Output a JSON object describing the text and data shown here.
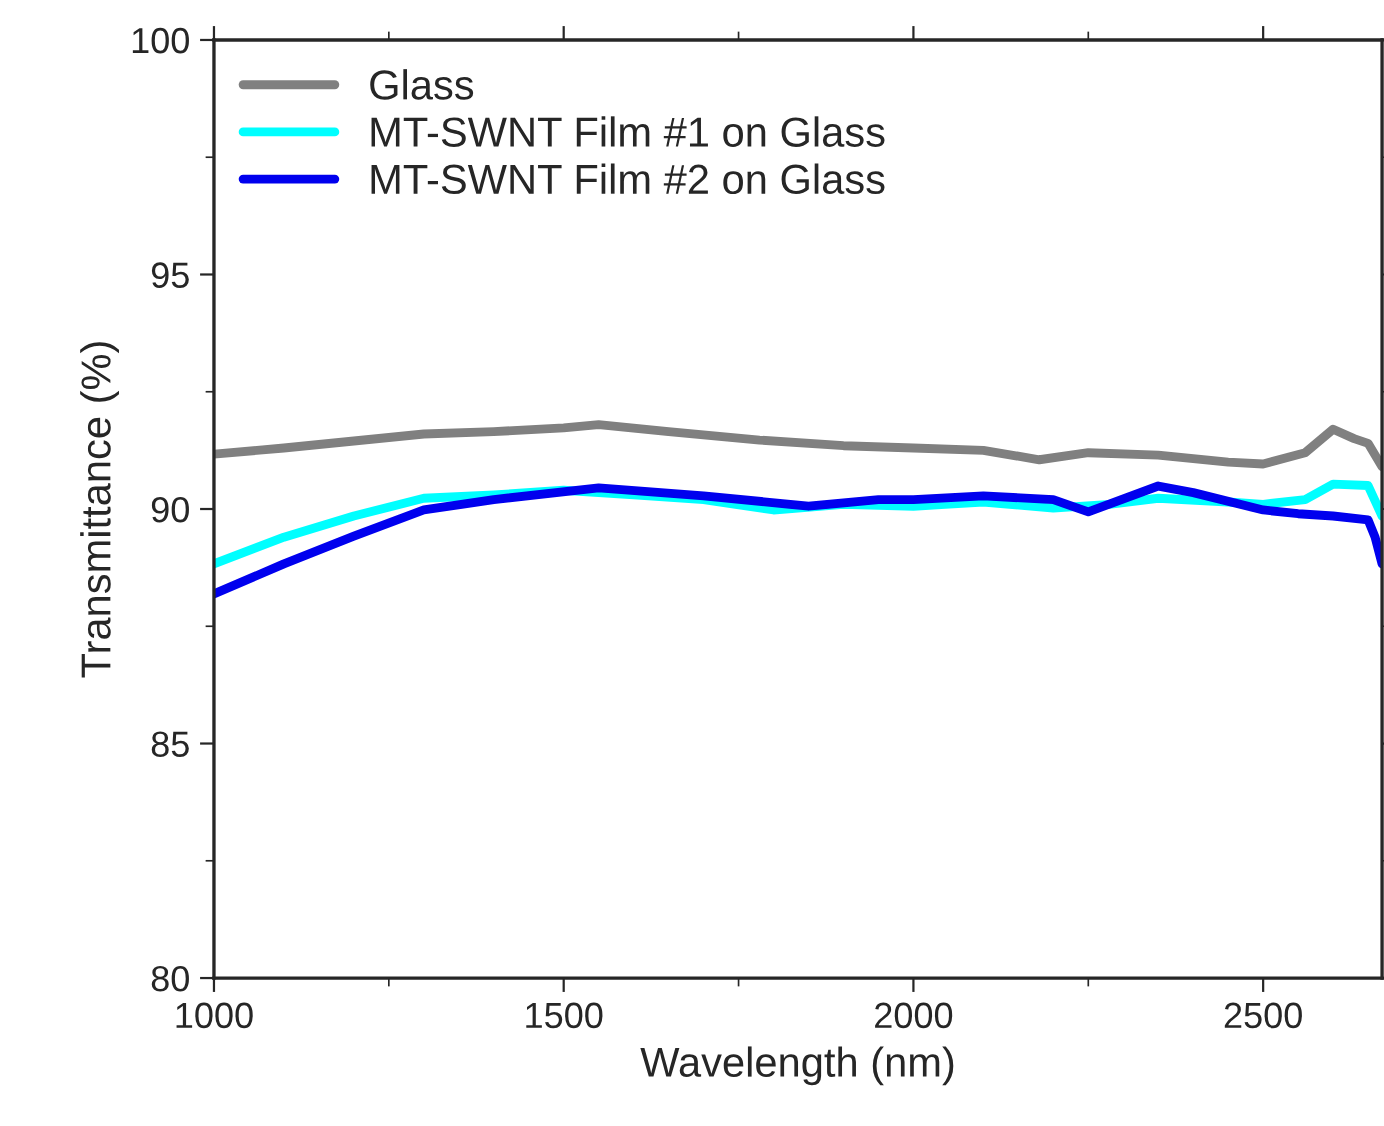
{
  "chart_data": {
    "type": "line",
    "xlabel": "Wavelength (nm)",
    "ylabel": "Transmittance (%)",
    "xlim": [
      1000,
      2670
    ],
    "xticks": [
      1000,
      1500,
      2000,
      2500
    ],
    "ylim": [
      80,
      100
    ],
    "yticks": [
      80,
      85,
      90,
      95,
      100
    ],
    "grid": false,
    "legend": "top left",
    "marker": "none",
    "line_style": "solid",
    "series": [
      {
        "name": "Glass",
        "color": "#808080",
        "x": [
          1000,
          1100,
          1200,
          1300,
          1400,
          1500,
          1550,
          1650,
          1780,
          1900,
          2000,
          2100,
          2180,
          2250,
          2350,
          2450,
          2500,
          2560,
          2600,
          2630,
          2650,
          2670
        ],
        "values": [
          91.17,
          91.3,
          91.45,
          91.6,
          91.65,
          91.73,
          91.8,
          91.65,
          91.47,
          91.35,
          91.3,
          91.25,
          91.05,
          91.2,
          91.15,
          91.0,
          90.96,
          91.2,
          91.7,
          91.5,
          91.4,
          90.9
        ]
      },
      {
        "name": "MT-SWNT Film #1 on Glass",
        "color": "#00ffff",
        "x": [
          1000,
          1100,
          1200,
          1300,
          1400,
          1500,
          1600,
          1700,
          1800,
          1900,
          2000,
          2100,
          2200,
          2280,
          2350,
          2450,
          2500,
          2560,
          2600,
          2650,
          2670
        ],
        "values": [
          88.83,
          89.4,
          89.85,
          90.23,
          90.3,
          90.4,
          90.3,
          90.2,
          89.98,
          90.1,
          90.06,
          90.15,
          90.02,
          90.1,
          90.23,
          90.15,
          90.1,
          90.2,
          90.53,
          90.5,
          89.85
        ]
      },
      {
        "name": "MT-SWNT Film #2 on Glass",
        "color": "#0000ee",
        "x": [
          1000,
          1100,
          1200,
          1300,
          1400,
          1550,
          1700,
          1850,
          1950,
          2000,
          2100,
          2200,
          2250,
          2350,
          2400,
          2500,
          2550,
          2600,
          2650,
          2660,
          2670
        ],
        "values": [
          88.19,
          88.83,
          89.42,
          89.98,
          90.2,
          90.45,
          90.28,
          90.06,
          90.2,
          90.2,
          90.28,
          90.2,
          89.94,
          90.49,
          90.35,
          89.98,
          89.9,
          89.85,
          89.77,
          89.4,
          88.83
        ]
      }
    ]
  }
}
